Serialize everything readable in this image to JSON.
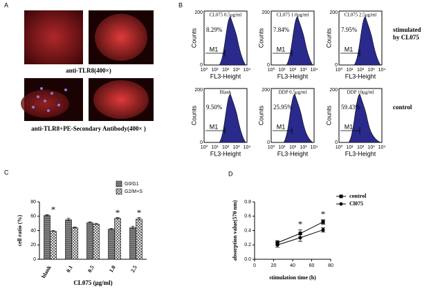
{
  "panel_a": {
    "label": "A",
    "captions": [
      "anti-TLR8(400×)",
      "anti-TLR8+PE-Secondary Antibody(400× )"
    ]
  },
  "panel_b": {
    "label": "B",
    "y_label": "Counts",
    "x_label": "FL3-Height",
    "yticks": [
      "0",
      "200"
    ],
    "xticks": [
      "10⁰",
      "10¹",
      "10²",
      "10³",
      "10⁴"
    ],
    "gate": "M1",
    "rows": [
      {
        "label": [
          "stimulated",
          "by CL075"
        ],
        "plots": [
          {
            "title": "CL075 0.5μg/ml",
            "percent": "8.29%"
          },
          {
            "title": "CL075 1.0μg/ml",
            "percent": "7.84%"
          },
          {
            "title": "CL075 2.5μg/ml",
            "percent": "7.95%"
          }
        ]
      },
      {
        "label": [
          "control"
        ],
        "plots": [
          {
            "title": "Blank",
            "percent": "9.50%"
          },
          {
            "title": "DDP 0.5μg/ml",
            "percent": "25.95%"
          },
          {
            "title": "DDP 10μg/ml",
            "percent": "59.43%"
          }
        ]
      }
    ]
  },
  "chart_data": [
    {
      "type": "bar",
      "panel": "C",
      "y_label": "cell ratio (%)",
      "x_label": "CL075 (μg/ml)",
      "categories": [
        "blank",
        "0.1",
        "0.5",
        "1.0",
        "2.5"
      ],
      "series": [
        {
          "name": "G0/G1",
          "color": "#8c8c8c",
          "hatch": "horizontal",
          "values": [
            61,
            55,
            51,
            42,
            44
          ],
          "errors": [
            1,
            2,
            1,
            1,
            2
          ]
        },
        {
          "name": "G2/M+S",
          "color": "#ffffff",
          "hatch": "cross",
          "values": [
            39,
            44,
            49,
            57,
            56
          ],
          "errors": [
            1,
            1,
            1,
            1,
            2
          ]
        }
      ],
      "ylim": [
        0,
        80
      ],
      "yticks": [
        0,
        20,
        40,
        60,
        80
      ],
      "annotations": [
        {
          "text": "*",
          "x": "blank"
        },
        {
          "text": "*",
          "x": "1.0"
        },
        {
          "text": "*",
          "x": "2.5"
        }
      ]
    },
    {
      "type": "line",
      "panel": "D",
      "y_label": "absorption value(570 nm)",
      "x_label": "stimulation time (h)",
      "x": [
        24,
        48,
        72
      ],
      "series": [
        {
          "name": "control",
          "color": "#000000",
          "marker": "square",
          "values": [
            0.23,
            0.36,
            0.52
          ],
          "errors": [
            0.03,
            0.05,
            0.03
          ]
        },
        {
          "name": "Cl075",
          "color": "#000000",
          "marker": "circle",
          "values": [
            0.2,
            0.3,
            0.41
          ],
          "errors": [
            0.03,
            0.05,
            0.03
          ]
        }
      ],
      "xlim": [
        0,
        80
      ],
      "xticks": [
        0,
        20,
        40,
        60,
        80
      ],
      "ylim": [
        0,
        0.8
      ],
      "yticks": [
        {
          "value": 0,
          "label": "0.0"
        },
        0.2,
        0.4,
        0.6,
        0.8
      ],
      "annotations": [
        {
          "text": "*",
          "x": 48
        },
        {
          "text": "*",
          "x": 72
        }
      ]
    }
  ]
}
